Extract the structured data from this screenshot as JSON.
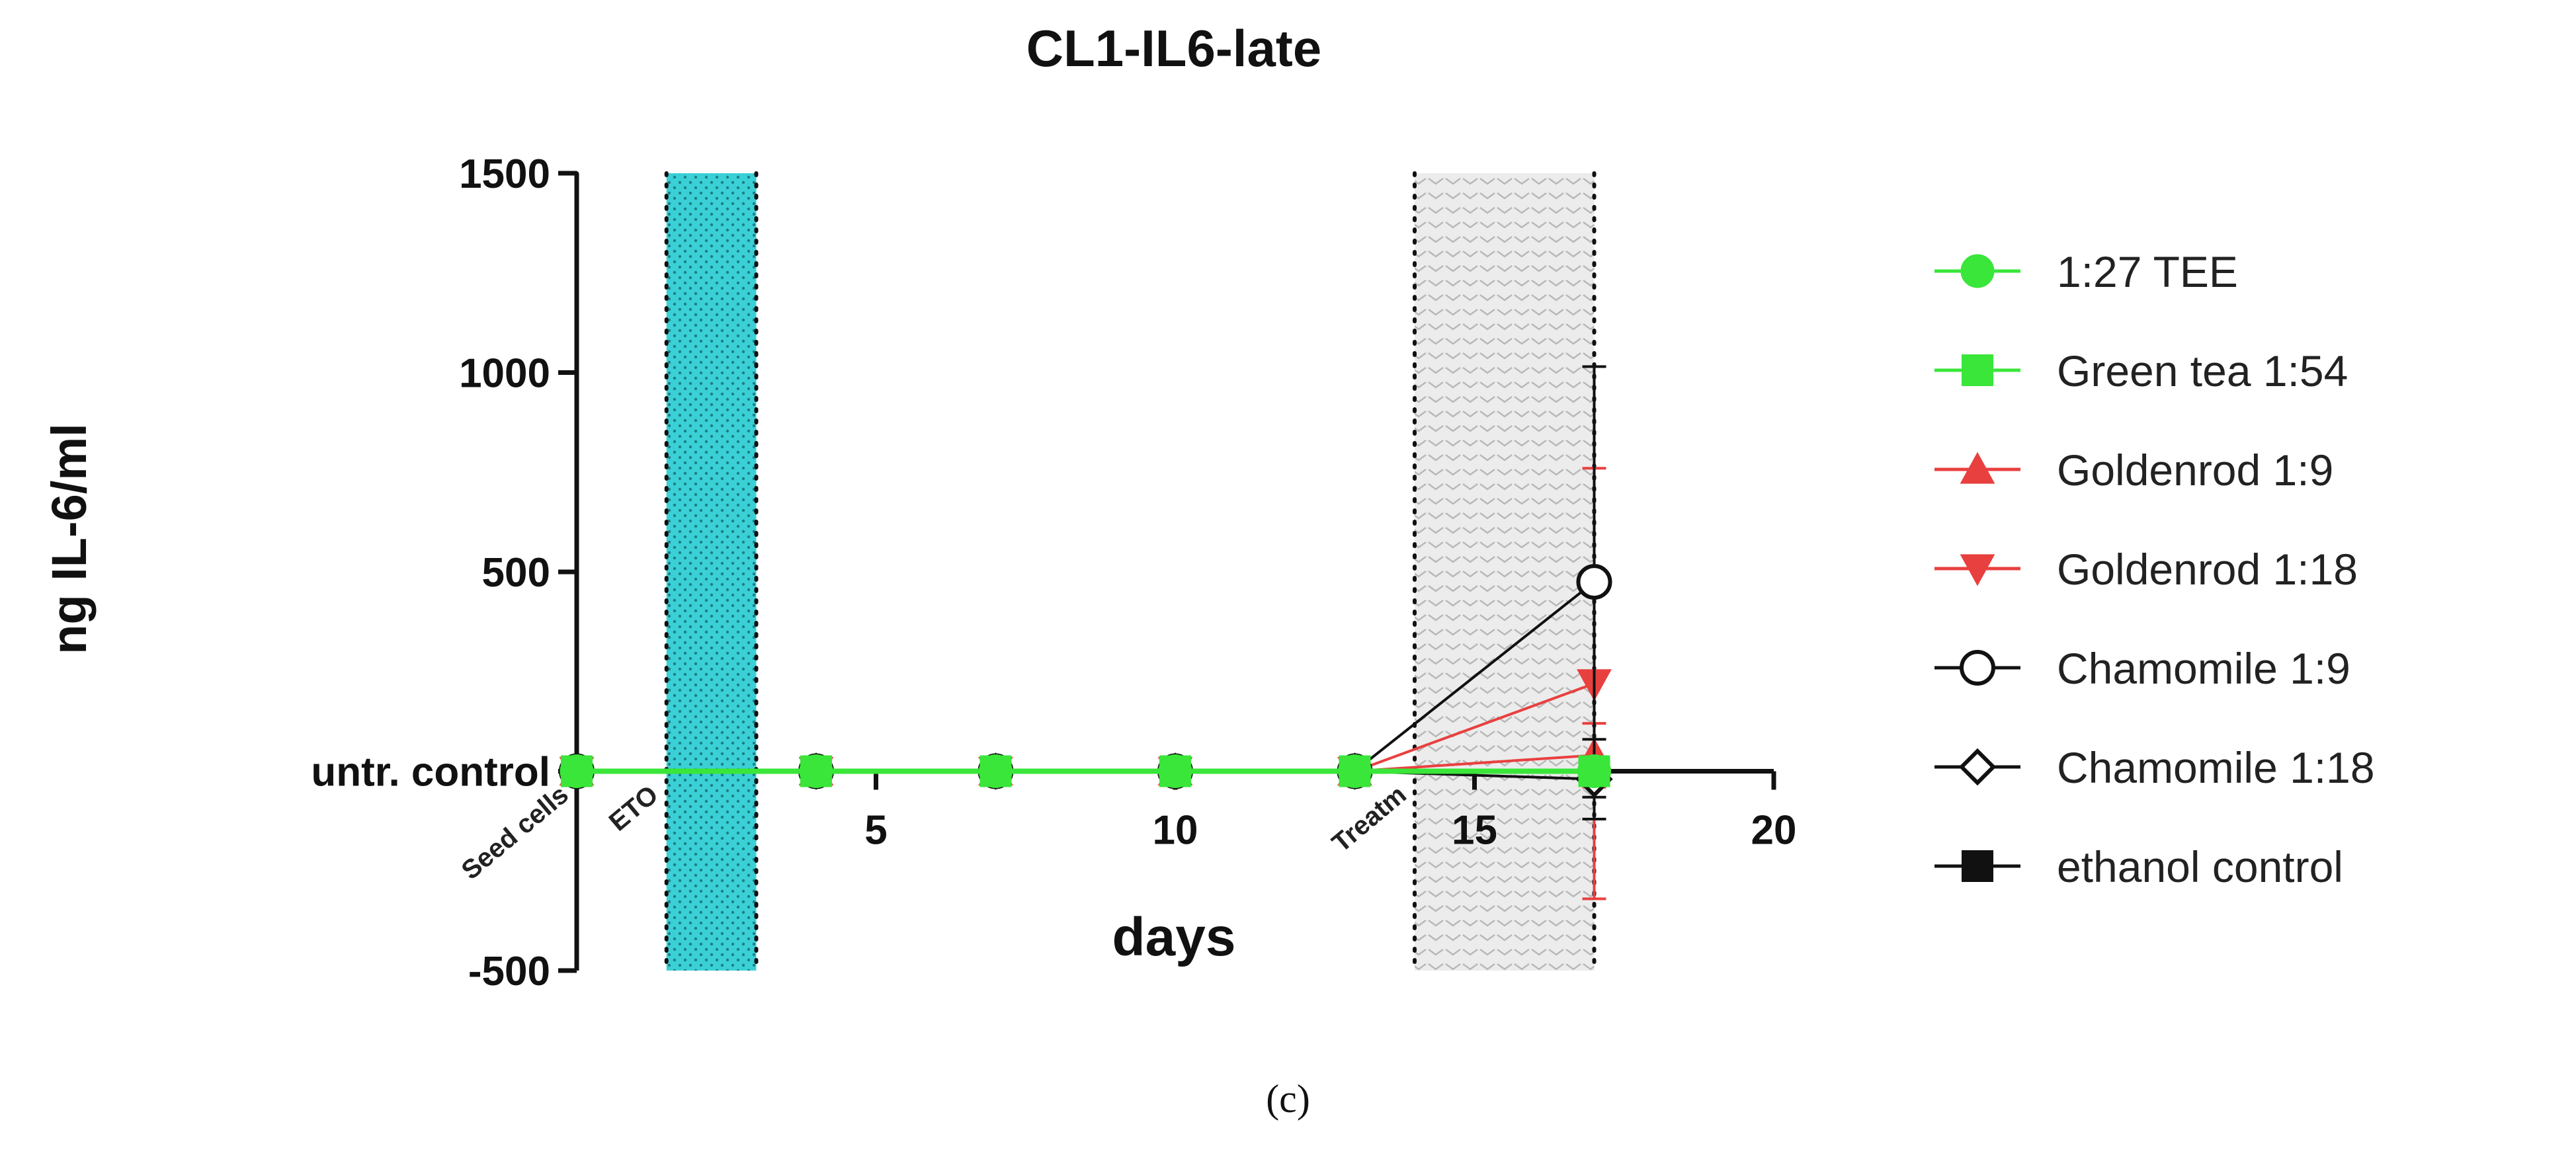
{
  "caption": "(c)",
  "chart_data": {
    "type": "line",
    "title": "CL1-IL6-late",
    "xlabel": "days",
    "ylabel": "ng IL-6/ml",
    "xlim": [
      0,
      20
    ],
    "ylim": [
      -500,
      1500
    ],
    "xticks": [
      5,
      10,
      15,
      20
    ],
    "yticks": [
      {
        "value": 1500,
        "label": "1500"
      },
      {
        "value": 1000,
        "label": "1000"
      },
      {
        "value": 500,
        "label": "500"
      },
      {
        "value": 0,
        "label": "untr. control"
      },
      {
        "value": -500,
        "label": "-500"
      }
    ],
    "event_labels": [
      {
        "x": 0,
        "text": "Seed cells"
      },
      {
        "x": 1.5,
        "text": "ETO"
      },
      {
        "x": 14,
        "text": "Treatm"
      }
    ],
    "event_lines": [
      0,
      1.5,
      3,
      14,
      17
    ],
    "shaded_regions": [
      {
        "from": 1.5,
        "to": 3,
        "color": "#3ad0d6",
        "pattern": "dots"
      },
      {
        "from": 14,
        "to": 17,
        "color": "#e6e6e6",
        "pattern": "chevrons"
      }
    ],
    "legend_position": "right",
    "x": [
      0,
      4,
      7,
      10,
      13,
      17
    ],
    "series": [
      {
        "name": "1:27 TEE",
        "color": "#39e639",
        "marker": "circle-filled",
        "values": [
          0,
          0,
          0,
          0,
          0,
          0
        ],
        "err": [
          0,
          0,
          0,
          0,
          0,
          20
        ]
      },
      {
        "name": "Green tea 1:54",
        "color": "#39e639",
        "marker": "square-filled",
        "values": [
          0,
          0,
          0,
          0,
          0,
          0
        ],
        "err": [
          0,
          0,
          0,
          0,
          0,
          20
        ]
      },
      {
        "name": "Goldenrod 1:9",
        "color": "#e8403f",
        "marker": "triangle-up-filled",
        "values": [
          0,
          0,
          0,
          0,
          0,
          40
        ],
        "err": [
          0,
          0,
          0,
          0,
          0,
          80
        ]
      },
      {
        "name": "Goldenrod 1:18",
        "color": "#e8403f",
        "marker": "triangle-down-filled",
        "values": [
          0,
          0,
          0,
          0,
          0,
          220
        ],
        "err": [
          0,
          0,
          0,
          0,
          0,
          540
        ]
      },
      {
        "name": "Chamomile 1:9",
        "color": "#111111",
        "marker": "circle-open",
        "values": [
          0,
          0,
          0,
          0,
          0,
          475
        ],
        "err": [
          0,
          0,
          0,
          0,
          0,
          540
        ]
      },
      {
        "name": "Chamomile 1:18",
        "color": "#111111",
        "marker": "diamond-open",
        "values": [
          0,
          0,
          0,
          0,
          0,
          -20
        ],
        "err": [
          0,
          0,
          0,
          0,
          0,
          100
        ]
      },
      {
        "name": "ethanol control",
        "color": "#111111",
        "marker": "square-filled",
        "values": [
          0,
          0,
          0,
          0,
          0,
          0
        ],
        "err": [
          0,
          0,
          0,
          0,
          0,
          10
        ]
      }
    ]
  }
}
